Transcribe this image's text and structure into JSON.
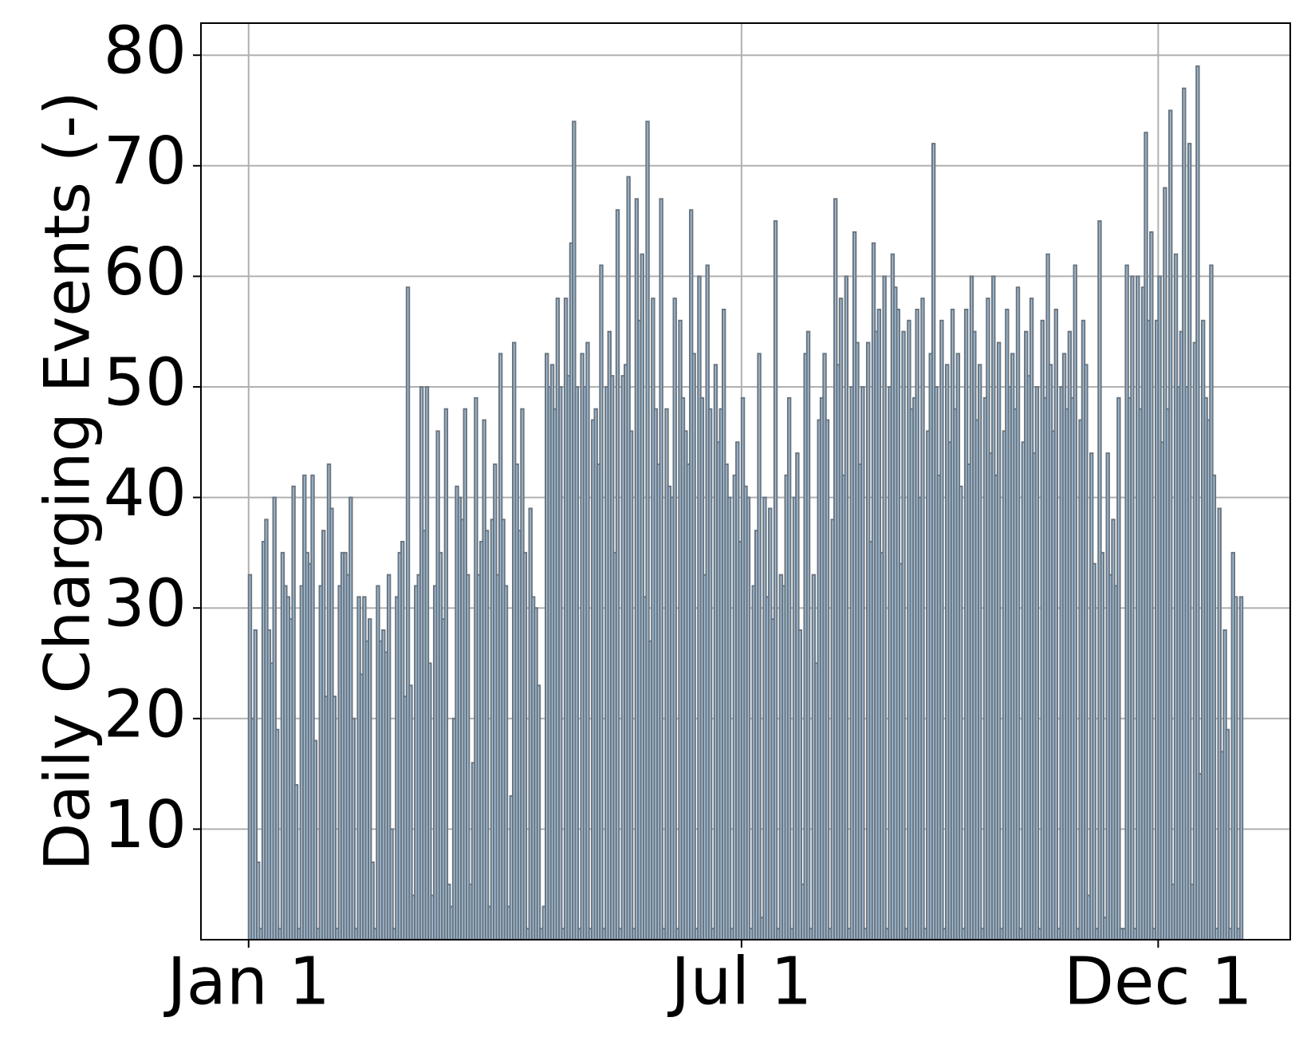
{
  "chart_data": {
    "type": "histogram",
    "ylabel": "Daily Charging Events (-)",
    "bins": [
      0,
      1,
      2,
      3,
      4,
      5,
      6,
      7,
      8,
      9,
      10,
      11,
      12,
      13,
      14,
      15,
      16,
      17,
      18,
      19,
      20,
      21,
      22,
      23,
      24,
      25,
      26,
      27,
      28,
      29,
      30,
      31,
      32,
      33,
      34,
      35,
      36,
      37,
      38,
      39,
      40,
      41,
      42,
      43,
      44,
      45,
      46,
      47,
      48,
      49,
      50,
      51,
      52,
      53,
      54,
      55,
      56,
      57,
      58,
      59,
      60,
      61,
      62,
      63,
      64,
      65,
      66,
      67,
      68,
      69,
      70,
      71,
      72,
      73,
      74,
      75,
      76,
      77,
      78,
      79,
      80,
      81,
      82,
      83,
      84,
      85,
      86,
      87,
      88,
      89,
      90,
      91,
      92,
      93,
      94,
      95,
      96,
      97,
      98,
      99,
      100,
      101,
      102,
      103,
      104,
      105,
      106,
      107,
      108,
      109,
      110,
      111,
      112,
      113,
      114,
      115,
      116,
      117,
      118,
      119,
      120,
      121,
      122,
      123,
      124,
      125,
      126,
      127,
      128,
      129,
      130,
      131,
      132,
      133,
      134,
      135,
      136,
      137,
      138,
      139,
      140,
      141,
      142,
      143,
      144,
      145,
      146,
      147,
      148,
      149,
      150,
      151,
      152,
      153,
      154,
      155,
      156,
      157,
      158,
      159,
      160,
      161,
      162,
      163,
      164,
      165,
      166,
      167,
      168,
      169,
      170,
      171,
      172,
      173,
      174,
      175,
      176,
      177,
      178,
      179,
      180,
      181,
      182,
      183,
      184,
      185,
      186,
      187,
      188,
      189,
      190,
      191,
      192,
      193,
      194,
      195,
      196,
      197,
      198,
      199,
      200,
      201,
      202,
      203,
      204,
      205,
      206,
      207,
      208,
      209,
      210,
      211,
      212,
      213,
      214,
      215,
      216,
      217,
      218,
      219,
      220,
      221,
      222,
      223,
      224,
      225,
      226,
      227,
      228,
      229,
      230,
      231,
      232,
      233,
      234,
      235,
      236,
      237,
      238,
      239,
      240,
      241,
      242,
      243,
      244,
      245,
      246,
      247,
      248,
      249,
      250,
      251,
      252,
      253,
      254,
      255,
      256,
      257,
      258,
      259,
      260,
      261,
      262,
      263,
      264,
      265,
      266,
      267,
      268,
      269,
      270,
      271,
      272,
      273,
      274,
      275,
      276,
      277,
      278,
      279,
      280,
      281,
      282,
      283,
      284,
      285,
      286,
      287,
      288,
      289,
      290,
      291,
      292,
      293,
      294,
      295,
      296,
      297,
      298,
      299,
      300,
      301,
      302,
      303,
      304,
      305,
      306,
      307,
      308,
      309,
      310,
      311,
      312,
      313,
      314,
      315,
      316,
      317,
      318,
      319,
      320,
      321,
      322,
      323,
      324,
      325,
      326,
      327,
      328,
      329,
      330,
      331,
      332,
      333,
      334,
      335,
      336,
      337,
      338,
      339,
      340,
      341,
      342,
      343,
      344,
      345,
      346,
      347,
      348,
      349,
      350,
      351,
      352,
      353,
      354,
      355,
      356,
      357,
      358,
      359,
      360,
      361,
      362,
      363,
      364,
      365
    ],
    "values": [
      33,
      20,
      28,
      7,
      1,
      36,
      38,
      28,
      25,
      40,
      19,
      1,
      35,
      32,
      31,
      29,
      41,
      14,
      1,
      32,
      42,
      35,
      34,
      42,
      18,
      1,
      32,
      37,
      22,
      43,
      39,
      22,
      1,
      32,
      35,
      35,
      33,
      40,
      20,
      1,
      31,
      24,
      31,
      27,
      29,
      7,
      1,
      32,
      27,
      28,
      26,
      33,
      10,
      1,
      31,
      35,
      36,
      22,
      59,
      23,
      4,
      32,
      33,
      50,
      37,
      50,
      25,
      4,
      32,
      46,
      35,
      29,
      48,
      5,
      3,
      20,
      41,
      40,
      38,
      48,
      33,
      5,
      16,
      49,
      33,
      36,
      47,
      37,
      3,
      38,
      43,
      33,
      53,
      38,
      32,
      3,
      13,
      54,
      43,
      37,
      48,
      35,
      1,
      39,
      31,
      30,
      23,
      1,
      3,
      53,
      50,
      52,
      48,
      58,
      50,
      1,
      58,
      51,
      63,
      74,
      50,
      1,
      53,
      50,
      54,
      1,
      47,
      48,
      43,
      61,
      1,
      50,
      55,
      51,
      35,
      66,
      1,
      51,
      52,
      69,
      46,
      1,
      67,
      56,
      62,
      31,
      74,
      27,
      58,
      48,
      43,
      67,
      1,
      48,
      41,
      40,
      58,
      1,
      56,
      49,
      46,
      43,
      66,
      53,
      1,
      60,
      49,
      33,
      61,
      48,
      1,
      52,
      45,
      48,
      57,
      43,
      40,
      1,
      42,
      45,
      36,
      49,
      41,
      40,
      1,
      32,
      37,
      53,
      2,
      40,
      31,
      39,
      29,
      65,
      1,
      33,
      32,
      42,
      49,
      1,
      40,
      44,
      28,
      5,
      53,
      55,
      1,
      33,
      25,
      47,
      49,
      53,
      47,
      1,
      38,
      67,
      52,
      58,
      42,
      60,
      1,
      50,
      64,
      54,
      43,
      50,
      1,
      54,
      36,
      63,
      55,
      57,
      35,
      60,
      1,
      50,
      62,
      59,
      57,
      34,
      55,
      1,
      56,
      48,
      49,
      57,
      40,
      58,
      1,
      46,
      53,
      72,
      50,
      42,
      56,
      1,
      52,
      45,
      57,
      48,
      53,
      41,
      1,
      57,
      43,
      60,
      55,
      47,
      52,
      1,
      49,
      58,
      44,
      60,
      42,
      54,
      1,
      46,
      57,
      50,
      53,
      48,
      59,
      1,
      45,
      55,
      51,
      58,
      44,
      50,
      1,
      56,
      49,
      62,
      52,
      46,
      57,
      1,
      50,
      53,
      48,
      55,
      49,
      61,
      1,
      47,
      56,
      52,
      4,
      44,
      34,
      1,
      65,
      35,
      2,
      44,
      33,
      38,
      32,
      49,
      1,
      1,
      61,
      49,
      60,
      1,
      60,
      48,
      59,
      73,
      56,
      64,
      1,
      56,
      60,
      45,
      68,
      48,
      75,
      5,
      62,
      50,
      55,
      77,
      50,
      72,
      5,
      54,
      79,
      15,
      56,
      49,
      47,
      61,
      42,
      1,
      39,
      17,
      28,
      19,
      1,
      35,
      31,
      1,
      31
    ],
    "color": "#a4c2dc",
    "edgecolor": "#6b7680",
    "xlim": [
      -17.5,
      382.5
    ],
    "xticks": [
      {
        "value": 0,
        "label": "Jan 1"
      },
      {
        "value": 181,
        "label": "Jul 1"
      },
      {
        "value": 334,
        "label": "Dec 1"
      }
    ],
    "ylim": [
      0,
      82.9
    ],
    "yticks": [
      10,
      20,
      30,
      40,
      50,
      60,
      70,
      80
    ],
    "grid": true
  }
}
